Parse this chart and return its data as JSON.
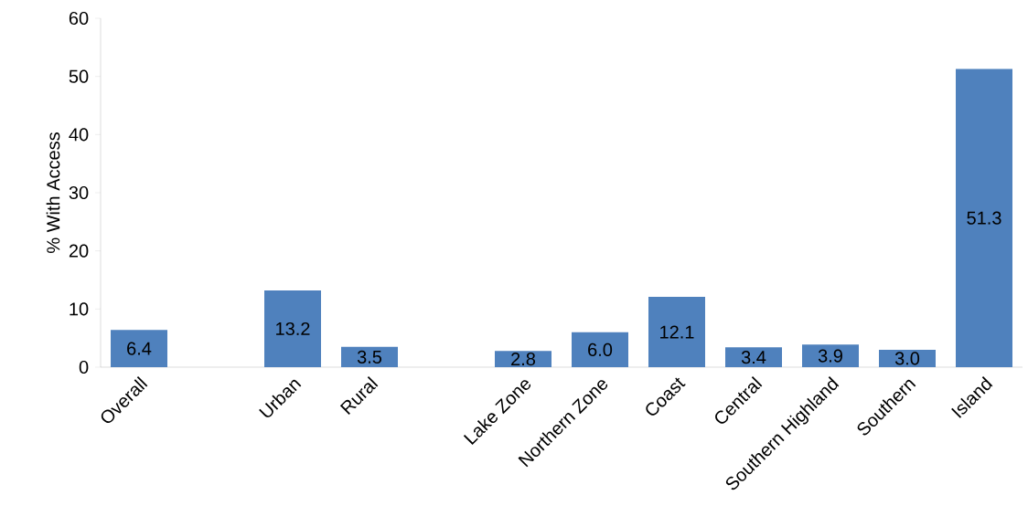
{
  "chart_data": {
    "type": "bar",
    "ylabel": "% With Access",
    "categories": [
      "Overall",
      null,
      "Urban",
      "Rural",
      null,
      "Lake Zone",
      "Northern Zone",
      "Coast",
      "Central",
      "Southern Highland",
      "Southern",
      "Island"
    ],
    "values": [
      6.4,
      null,
      13.2,
      3.5,
      null,
      2.8,
      6.0,
      12.1,
      3.4,
      3.9,
      3.0,
      51.3
    ],
    "value_labels": [
      "6.4",
      null,
      "13.2",
      "3.5",
      null,
      "2.8",
      "6.0",
      "12.1",
      "3.4",
      "3.9",
      "3.0",
      "51.3"
    ],
    "color": "#4f81bd",
    "ylim": [
      0,
      60
    ],
    "yticks": [
      0,
      10,
      20,
      30,
      40,
      50,
      60
    ],
    "grid": false
  }
}
